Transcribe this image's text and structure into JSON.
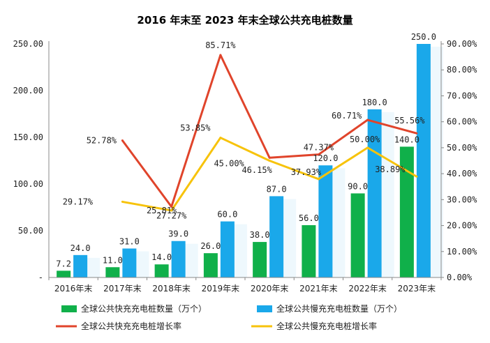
{
  "chart_data": {
    "type": "bar+line",
    "title": "2016 年末至 2023 年末全球公共充电桩数量",
    "categories": [
      "2016年末",
      "2017年末",
      "2018年末",
      "2019年末",
      "2020年末",
      "2021年末",
      "2022年末",
      "2023年末"
    ],
    "left_axis": {
      "min": 0,
      "max": 250,
      "ticks": [
        "-",
        "50.00",
        "100.00",
        "150.00",
        "200.00",
        "250.00"
      ]
    },
    "right_axis": {
      "min": 0,
      "max": 90,
      "ticks": [
        "0.00%",
        "10.00%",
        "20.00%",
        "30.00%",
        "40.00%",
        "50.00%",
        "60.00%",
        "70.00%",
        "80.00%",
        "90.00%"
      ]
    },
    "bar_series": [
      {
        "name": "全球公共快充充电桩数量（万个）",
        "color": "#10b04a",
        "values": [
          7.2,
          11.0,
          14.0,
          26.0,
          38.0,
          56.0,
          90.0,
          140.0
        ],
        "labels": [
          "7.2",
          "11.0",
          "14.0",
          "26.0",
          "38.0",
          "56.0",
          "90.0",
          "140.0"
        ]
      },
      {
        "name": "全球公共慢充充电桩数量（万个）",
        "color": "#1aa8ea",
        "values": [
          24.0,
          31.0,
          39.0,
          60.0,
          87.0,
          120.0,
          180.0,
          250.0
        ],
        "labels": [
          "24.0",
          "31.0",
          "39.0",
          "60.0",
          "87.0",
          "120.0",
          "180.0",
          "250.0"
        ]
      }
    ],
    "line_series": [
      {
        "name": "全球公共快充充电桩增长率",
        "color": "#e0442b",
        "start_index": 1,
        "values": [
          52.78,
          27.27,
          85.71,
          46.15,
          47.37,
          60.71,
          55.56
        ],
        "labels": [
          "52.78%",
          "27.27%",
          "85.71%",
          "46.15%",
          "47.37%",
          "60.71%",
          "55.56%"
        ]
      },
      {
        "name": "全球公共慢充充电桩增长率",
        "color": "#f7c30b",
        "start_index": 1,
        "values": [
          29.17,
          25.81,
          53.85,
          45.0,
          37.93,
          50.0,
          38.89
        ],
        "labels": [
          "29.17%",
          "25.81%",
          "53.85%",
          "45.00%",
          "37.93%",
          "50.00%",
          "38.89%"
        ]
      }
    ],
    "grid": false,
    "legend_position": "bottom"
  }
}
